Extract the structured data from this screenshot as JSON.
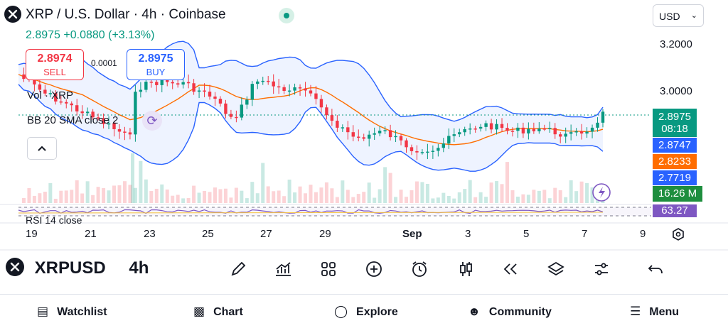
{
  "header": {
    "title": "XRP / U.S. Dollar · 4h · Coinbase",
    "price_change": "2.8975 +0.0880 (+3.13%)",
    "currency": "USD",
    "live_color": "#089981"
  },
  "trade": {
    "sell_price": "2.8974",
    "sell_label": "SELL",
    "buy_price": "2.8975",
    "buy_label": "BUY",
    "spread": "0.0001"
  },
  "indicators": {
    "volume_label": "Vol · XRP",
    "bb_label": "BB 20 SMA close 2",
    "rsi_label": "RSI 14 close"
  },
  "price_axis": {
    "labels": [
      "3.2000",
      "3.0000"
    ],
    "last_price": "2.8975",
    "countdown": "08:18",
    "bb_upper": "2.8747",
    "bb_basis": "2.8233",
    "bb_lower": "2.7719",
    "volume": "16.26 M",
    "rsi_value": "63.27"
  },
  "time_axis": {
    "labels": [
      "19",
      "21",
      "23",
      "25",
      "27",
      "29",
      "Sep",
      "3",
      "5",
      "7",
      "9"
    ]
  },
  "toolbar": {
    "symbol": "XRPUSD",
    "interval": "4h",
    "icons": [
      "draw-icon",
      "indicators-icon",
      "layouts-icon",
      "add-icon",
      "alert-icon",
      "candles-icon",
      "replay-icon",
      "layers-icon",
      "settings-icon",
      "undo-icon"
    ]
  },
  "nav": {
    "watchlist": "Watchlist",
    "chart": "Chart",
    "explore": "Explore",
    "community": "Community",
    "menu": "Menu"
  },
  "colors": {
    "up": "#089981",
    "down": "#f23645",
    "bb": "#2962ff",
    "basis": "#ff6d00",
    "rsi": "#7e57c2",
    "volume_badge": "#1e8e3e"
  },
  "chart_data": {
    "type": "candlestick",
    "interval": "4h",
    "symbol": "XRP / U.S. Dollar",
    "x_labels": [
      "19",
      "21",
      "23",
      "25",
      "27",
      "29",
      "Sep",
      "3",
      "5",
      "7",
      "9"
    ],
    "y_labels": [
      3.2,
      3.0
    ],
    "last_price": 2.8975,
    "bollinger": {
      "upper": 2.8747,
      "basis": 2.8233,
      "lower": 2.7719
    },
    "volume_last": "16.26 M",
    "rsi_last": 63.27
  }
}
